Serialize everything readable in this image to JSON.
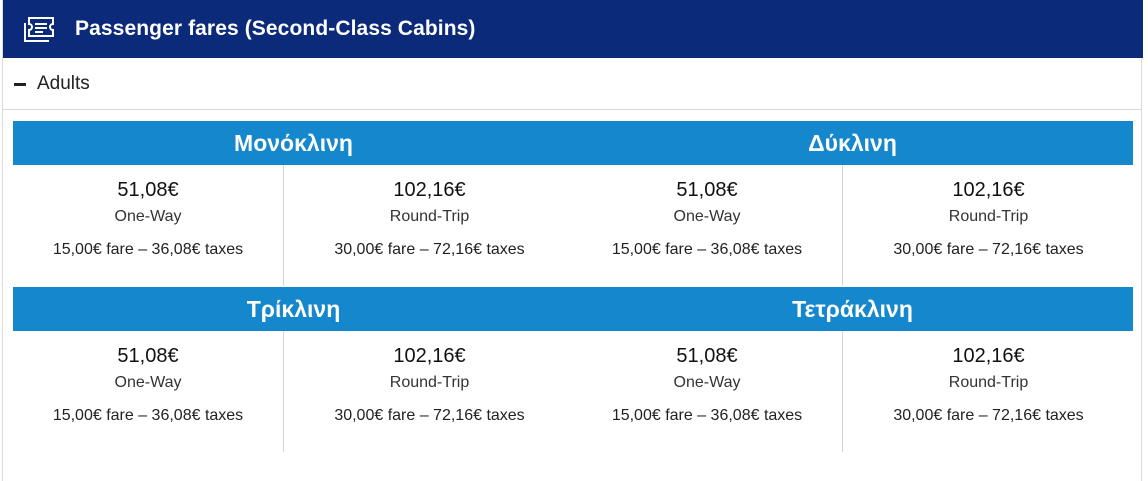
{
  "header": {
    "title": "Passenger fares (Second-Class Cabins)",
    "icon": "ticket-icon"
  },
  "section": {
    "label": "Adults",
    "toggle_icon": "minus-icon"
  },
  "cabins": [
    {
      "name": "Μονόκλινη",
      "one_way": {
        "price": "51,08€",
        "label": "One-Way",
        "breakdown": "15,00€ fare – 36,08€ taxes"
      },
      "round_trip": {
        "price": "102,16€",
        "label": "Round-Trip",
        "breakdown": "30,00€ fare – 72,16€ taxes"
      }
    },
    {
      "name": "Δύκλινη",
      "one_way": {
        "price": "51,08€",
        "label": "One-Way",
        "breakdown": "15,00€ fare – 36,08€ taxes"
      },
      "round_trip": {
        "price": "102,16€",
        "label": "Round-Trip",
        "breakdown": "30,00€ fare – 72,16€ taxes"
      }
    },
    {
      "name": "Τρίκλινη",
      "one_way": {
        "price": "51,08€",
        "label": "One-Way",
        "breakdown": "15,00€ fare – 36,08€ taxes"
      },
      "round_trip": {
        "price": "102,16€",
        "label": "Round-Trip",
        "breakdown": "30,00€ fare – 72,16€ taxes"
      }
    },
    {
      "name": "Τετράκλινη",
      "one_way": {
        "price": "51,08€",
        "label": "One-Way",
        "breakdown": "15,00€ fare – 36,08€ taxes"
      },
      "round_trip": {
        "price": "102,16€",
        "label": "Round-Trip",
        "breakdown": "30,00€ fare – 72,16€ taxes"
      }
    }
  ],
  "colors": {
    "header_bg": "#0b2a7a",
    "cabin_band_bg": "#1587cd"
  }
}
